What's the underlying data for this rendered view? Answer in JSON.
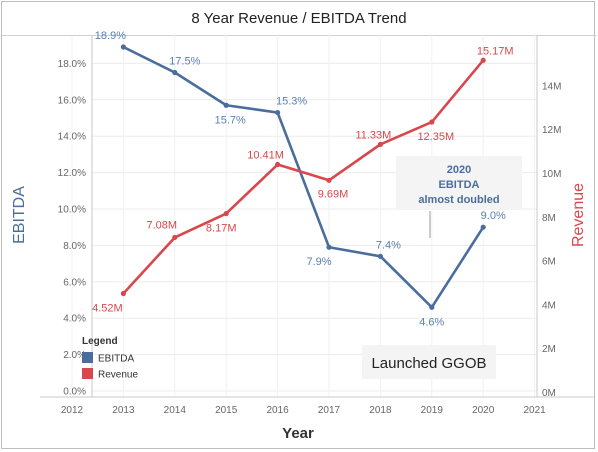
{
  "chart_data": {
    "type": "line",
    "title": "8 Year Revenue / EBITDA Trend",
    "xlabel": "Year",
    "y_left_label": "EBITDA",
    "y_right_label": "Revenue",
    "x_ticks": [
      "2012",
      "2013",
      "2014",
      "2015",
      "2016",
      "2017",
      "2018",
      "2019",
      "2020",
      "2021"
    ],
    "x_range": [
      2012,
      2021
    ],
    "y_left_ticks": [
      "0.0%",
      "2.0%",
      "4.0%",
      "6.0%",
      "8.0%",
      "10.0%",
      "12.0%",
      "14.0%",
      "16.0%",
      "18.0%"
    ],
    "y_left_range": [
      0,
      20
    ],
    "y_right_ticks": [
      "0M",
      "2M",
      "4M",
      "6M",
      "8M",
      "10M",
      "12M",
      "14M"
    ],
    "y_right_range": [
      0,
      16
    ],
    "grid": true,
    "legend": {
      "title": "Legend",
      "placement": "bottom-left",
      "items": [
        {
          "label": "EBITDA",
          "color": "#4a6d9c"
        },
        {
          "label": "Revenue",
          "color": "#d9474c"
        }
      ]
    },
    "series": [
      {
        "name": "EBITDA",
        "axis": "left",
        "color": "#4a6d9c",
        "label_color": "#5b80b5",
        "x": [
          2013,
          2014,
          2015,
          2016,
          2017,
          2018,
          2019,
          2020
        ],
        "values": [
          18.9,
          17.5,
          15.7,
          15.3,
          7.9,
          7.4,
          4.6,
          9.0
        ],
        "labels": [
          "18.9%",
          "17.5%",
          "15.7%",
          "15.3%",
          "7.9%",
          "7.4%",
          "4.6%",
          "9.0%"
        ]
      },
      {
        "name": "Revenue",
        "axis": "right",
        "color": "#d9474c",
        "label_color": "#d9474c",
        "x": [
          2013,
          2014,
          2015,
          2016,
          2017,
          2018,
          2019,
          2020
        ],
        "values": [
          4.52,
          7.08,
          8.17,
          10.41,
          9.69,
          11.33,
          12.35,
          15.17
        ],
        "labels": [
          "4.52M",
          "7.08M",
          "8.17M",
          "10.41M",
          "9.69M",
          "11.33M",
          "12.35M",
          "15.17M"
        ]
      }
    ],
    "annotations": [
      {
        "text_lines": [
          "2020",
          "EBITDA",
          "almost doubled"
        ],
        "color": "#4a6d9c"
      },
      {
        "text_lines": [
          "Launched GGOB"
        ],
        "color": "#222222"
      }
    ]
  }
}
